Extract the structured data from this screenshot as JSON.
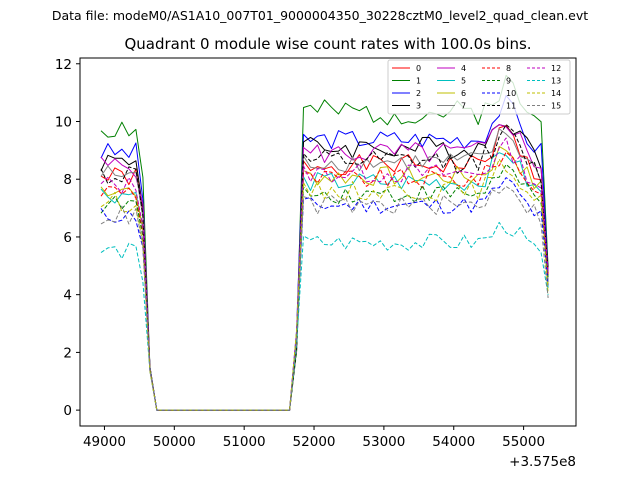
{
  "suptitle": "Data file: modeM0/AS1A10_007T01_9000004350_30228cztM0_level2_quad_clean.evt",
  "chart_data": {
    "type": "line",
    "title": "Quadrant 0 module wise count rates with 100.0s bins.",
    "xlabel": "",
    "ylabel": "",
    "x_offset_label": "+3.575e8",
    "xlim": [
      48650,
      55750
    ],
    "ylim": [
      -0.55,
      12.2
    ],
    "xticks": [
      49000,
      50000,
      51000,
      52000,
      53000,
      54000,
      55000
    ],
    "xtick_labels": [
      "49000",
      "50000",
      "51000",
      "52000",
      "53000",
      "54000",
      "55000"
    ],
    "yticks": [
      0,
      2,
      4,
      6,
      8,
      10,
      12
    ],
    "ytick_labels": [
      "0",
      "2",
      "4",
      "6",
      "8",
      "10",
      "12"
    ],
    "grid": false,
    "legend_position": "top-right",
    "legend_columns": 4,
    "x_segments": [
      {
        "start": 48950,
        "end": 49550
      },
      {
        "start": 51750,
        "end": 55350
      }
    ],
    "segment_tail_x": [
      49650,
      49750
    ],
    "segment_head_x": [
      51650
    ],
    "gap_value": 0,
    "series": [
      {
        "name": "0",
        "color": "#ff0000",
        "dash": "solid",
        "base": 8.5,
        "edge": 4.6,
        "amp": 0.35,
        "peak": 1.2,
        "seed": 1
      },
      {
        "name": "1",
        "color": "#008000",
        "dash": "solid",
        "base": 10.3,
        "edge": 5.2,
        "amp": 0.45,
        "peak": 1.0,
        "seed": 2
      },
      {
        "name": "2",
        "color": "#0000ff",
        "dash": "solid",
        "base": 9.4,
        "edge": 5.0,
        "amp": 0.35,
        "peak": 1.2,
        "seed": 3
      },
      {
        "name": "3",
        "color": "#000000",
        "dash": "solid",
        "base": 9.1,
        "edge": 4.9,
        "amp": 0.4,
        "peak": 1.1,
        "seed": 4
      },
      {
        "name": "4",
        "color": "#bf00bf",
        "dash": "solid",
        "base": 8.9,
        "edge": 4.8,
        "amp": 0.4,
        "peak": 1.2,
        "seed": 5
      },
      {
        "name": "5",
        "color": "#00bfbf",
        "dash": "solid",
        "base": 7.9,
        "edge": 4.3,
        "amp": 0.35,
        "peak": 1.1,
        "seed": 6
      },
      {
        "name": "6",
        "color": "#bfbf00",
        "dash": "solid",
        "base": 8.1,
        "edge": 4.4,
        "amp": 0.35,
        "peak": 1.0,
        "seed": 7
      },
      {
        "name": "7",
        "color": "#808080",
        "dash": "solid",
        "base": 8.6,
        "edge": 4.5,
        "amp": 0.35,
        "peak": 1.0,
        "seed": 8
      },
      {
        "name": "8",
        "color": "#ff0000",
        "dash": "dashed",
        "base": 8.0,
        "edge": 4.6,
        "amp": 0.35,
        "peak": 0.9,
        "seed": 9
      },
      {
        "name": "9",
        "color": "#008000",
        "dash": "dashed",
        "base": 7.5,
        "edge": 4.5,
        "amp": 0.35,
        "peak": 0.9,
        "seed": 10
      },
      {
        "name": "10",
        "color": "#0000ff",
        "dash": "dashed",
        "base": 7.1,
        "edge": 4.2,
        "amp": 0.3,
        "peak": 0.8,
        "seed": 11
      },
      {
        "name": "11",
        "color": "#000000",
        "dash": "dashed",
        "base": 8.6,
        "edge": 4.7,
        "amp": 0.4,
        "peak": 1.0,
        "seed": 12
      },
      {
        "name": "12",
        "color": "#bf00bf",
        "dash": "dashed",
        "base": 8.2,
        "edge": 4.5,
        "amp": 0.35,
        "peak": 0.9,
        "seed": 13
      },
      {
        "name": "13",
        "color": "#00bfbf",
        "dash": "dashed",
        "base": 5.8,
        "edge": 3.7,
        "amp": 0.3,
        "peak": 0.6,
        "seed": 14
      },
      {
        "name": "14",
        "color": "#bfbf00",
        "dash": "dashed",
        "base": 7.6,
        "edge": 4.3,
        "amp": 0.35,
        "peak": 0.9,
        "seed": 15
      },
      {
        "name": "15",
        "color": "#808080",
        "dash": "dashed",
        "base": 7.1,
        "edge": 4.1,
        "amp": 0.35,
        "peak": 0.8,
        "seed": 16
      }
    ]
  }
}
